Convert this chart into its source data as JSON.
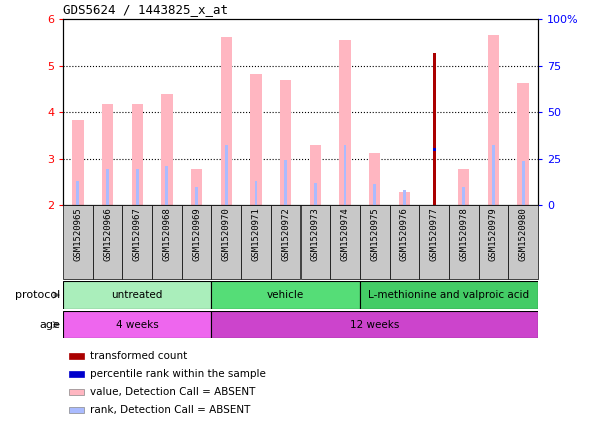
{
  "title": "GDS5624 / 1443825_x_at",
  "samples": [
    "GSM1520965",
    "GSM1520966",
    "GSM1520967",
    "GSM1520968",
    "GSM1520969",
    "GSM1520970",
    "GSM1520971",
    "GSM1520972",
    "GSM1520973",
    "GSM1520974",
    "GSM1520975",
    "GSM1520976",
    "GSM1520977",
    "GSM1520978",
    "GSM1520979",
    "GSM1520980"
  ],
  "pink_bar_values": [
    3.82,
    4.18,
    4.18,
    4.38,
    2.78,
    5.62,
    4.82,
    4.7,
    3.3,
    5.55,
    3.12,
    2.28,
    5.28,
    2.78,
    5.65,
    4.62
  ],
  "blue_bar_values": [
    2.52,
    2.78,
    2.78,
    2.85,
    2.38,
    3.3,
    2.52,
    2.98,
    2.48,
    3.3,
    2.45,
    2.32,
    3.2,
    2.38,
    3.3,
    2.95
  ],
  "red_bar_value": 5.28,
  "red_bar_index": 12,
  "blue_mark_value": 3.2,
  "blue_mark_index": 12,
  "ylim": [
    2.0,
    6.0
  ],
  "y_left_ticks": [
    2,
    3,
    4,
    5,
    6
  ],
  "y_right_ticks": [
    0,
    25,
    50,
    75,
    100
  ],
  "y_right_labels": [
    "0",
    "25",
    "50",
    "75",
    "100%"
  ],
  "protocol_groups": [
    {
      "label": "untreated",
      "start": 0,
      "end": 5,
      "color": "#AAEEBB"
    },
    {
      "label": "vehicle",
      "start": 5,
      "end": 10,
      "color": "#55DD77"
    },
    {
      "label": "L-methionine and valproic acid",
      "start": 10,
      "end": 16,
      "color": "#44CC66"
    }
  ],
  "age_groups": [
    {
      "label": "4 weeks",
      "start": 0,
      "end": 5,
      "color": "#EE66EE"
    },
    {
      "label": "12 weeks",
      "start": 5,
      "end": 16,
      "color": "#CC44CC"
    }
  ],
  "pink_color": "#FFB6C1",
  "light_blue_color": "#AABBFF",
  "red_color": "#AA0000",
  "blue_color": "#0000CC",
  "xtick_bg_color": "#C8C8C8",
  "plot_bg_color": "#FFFFFF",
  "bar_width": 0.38,
  "thin_bar_width": 0.1,
  "legend_items": [
    {
      "color": "#AA0000",
      "label": "transformed count"
    },
    {
      "color": "#0000CC",
      "label": "percentile rank within the sample"
    },
    {
      "color": "#FFB6C1",
      "label": "value, Detection Call = ABSENT"
    },
    {
      "color": "#AABBFF",
      "label": "rank, Detection Call = ABSENT"
    }
  ]
}
